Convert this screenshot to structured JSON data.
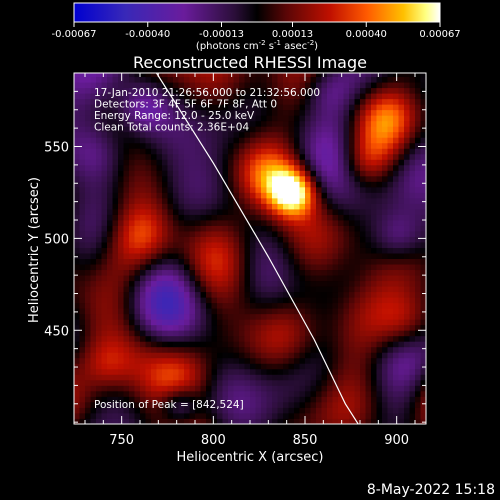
{
  "chart_data": {
    "type": "heatmap",
    "title": "Reconstructed RHESSI Image",
    "xlabel": "Heliocentric X (arcsec)",
    "ylabel": "Heliocentric Y (arcsec)",
    "xlim": [
      724,
      916
    ],
    "ylim": [
      399,
      590
    ],
    "xticks": [
      750,
      800,
      850,
      900
    ],
    "yticks": [
      450,
      500,
      550
    ],
    "colorbar": {
      "colormap": "rhessi-blue-purple-red-yellow-white",
      "range": [
        -0.00067,
        0.00067
      ],
      "tick_values": [
        -0.00067,
        -0.0004,
        -0.00013,
        0.00013,
        0.0004,
        0.00067
      ],
      "tick_labels": [
        "-0.00067",
        "-0.00040",
        "-0.00013",
        "0.00013",
        "0.00040",
        "0.00067"
      ],
      "unit_main": "(photons cm",
      "unit_sup1": "-2",
      "unit_mid": " s",
      "unit_sup2": "-1",
      "unit_mid2": " asec",
      "unit_sup3": "-2",
      "unit_end": ")"
    },
    "annotations": [
      "17-Jan-2010 21:26:56.000 to 21:32:56.000",
      "Detectors: 3F 4F 5F 6F 7F 8F, Att 0",
      "Energy Range: 12.0 - 25.0 keV",
      "Clean     Total counts: 2.36E+04"
    ],
    "peak_label": "Position of Peak = [842,524]",
    "peak": {
      "x": 842,
      "y": 524
    },
    "limb_curve": [
      [
        769,
        590
      ],
      [
        800,
        541
      ],
      [
        830,
        490
      ],
      [
        855,
        445
      ],
      [
        872,
        410
      ],
      [
        879,
        399
      ]
    ],
    "grid": false
  },
  "footer": {
    "date": "8-May-2022 15:18"
  }
}
